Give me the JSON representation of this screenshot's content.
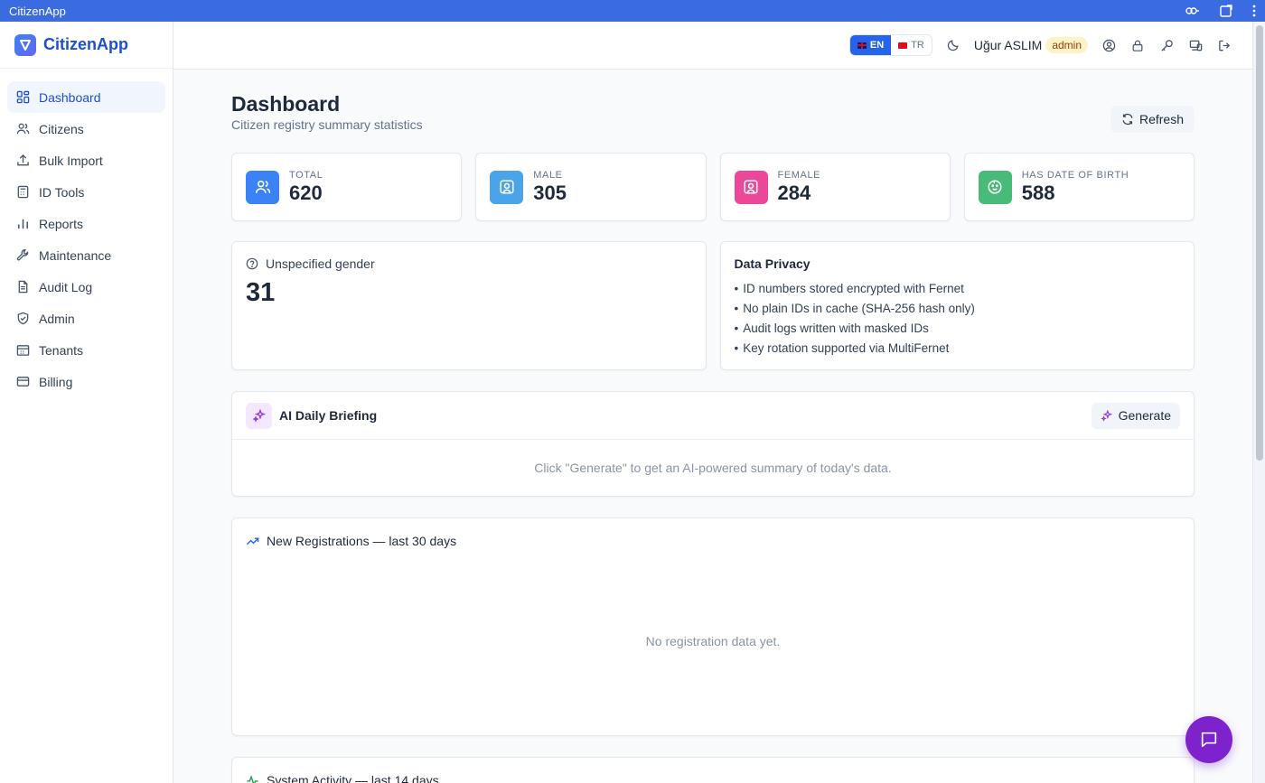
{
  "window": {
    "title": "CitizenApp"
  },
  "brand": {
    "name": "CitizenApp"
  },
  "sidebar": {
    "items": [
      {
        "label": "Dashboard",
        "icon": "dashboard-icon",
        "active": true
      },
      {
        "label": "Citizens",
        "icon": "users-icon"
      },
      {
        "label": "Bulk Import",
        "icon": "upload-icon"
      },
      {
        "label": "ID Tools",
        "icon": "calculator-icon"
      },
      {
        "label": "Reports",
        "icon": "bar-chart-icon"
      },
      {
        "label": "Maintenance",
        "icon": "wrench-icon"
      },
      {
        "label": "Audit Log",
        "icon": "document-icon"
      },
      {
        "label": "Admin",
        "icon": "shield-icon"
      },
      {
        "label": "Tenants",
        "icon": "building-icon"
      },
      {
        "label": "Billing",
        "icon": "credit-card-icon"
      }
    ]
  },
  "topbar": {
    "lang_en": "EN",
    "lang_tr": "TR",
    "user_name": "Uğur ASLIM",
    "role": "admin"
  },
  "page": {
    "title": "Dashboard",
    "subtitle": "Citizen registry summary statistics",
    "refresh_label": "Refresh"
  },
  "stats": [
    {
      "label": "TOTAL",
      "value": "620",
      "color": "#3b82f6"
    },
    {
      "label": "MALE",
      "value": "305",
      "color": "#4ba3e8"
    },
    {
      "label": "FEMALE",
      "value": "284",
      "color": "#ec4899"
    },
    {
      "label": "HAS DATE OF BIRTH",
      "value": "588",
      "color": "#48bb78"
    }
  ],
  "unspecified": {
    "label": "Unspecified gender",
    "value": "31"
  },
  "privacy": {
    "title": "Data Privacy",
    "items": [
      "ID numbers stored encrypted with Fernet",
      "No plain IDs in cache (SHA-256 hash only)",
      "Audit logs written with masked IDs",
      "Key rotation supported via MultiFernet"
    ]
  },
  "ai": {
    "title": "AI Daily Briefing",
    "generate_label": "Generate",
    "hint": "Click \"Generate\" to get an AI-powered summary of today's data."
  },
  "registrations": {
    "title": "New Registrations — last 30 days",
    "empty": "No registration data yet."
  },
  "activity": {
    "title": "System Activity — last 14 days"
  }
}
